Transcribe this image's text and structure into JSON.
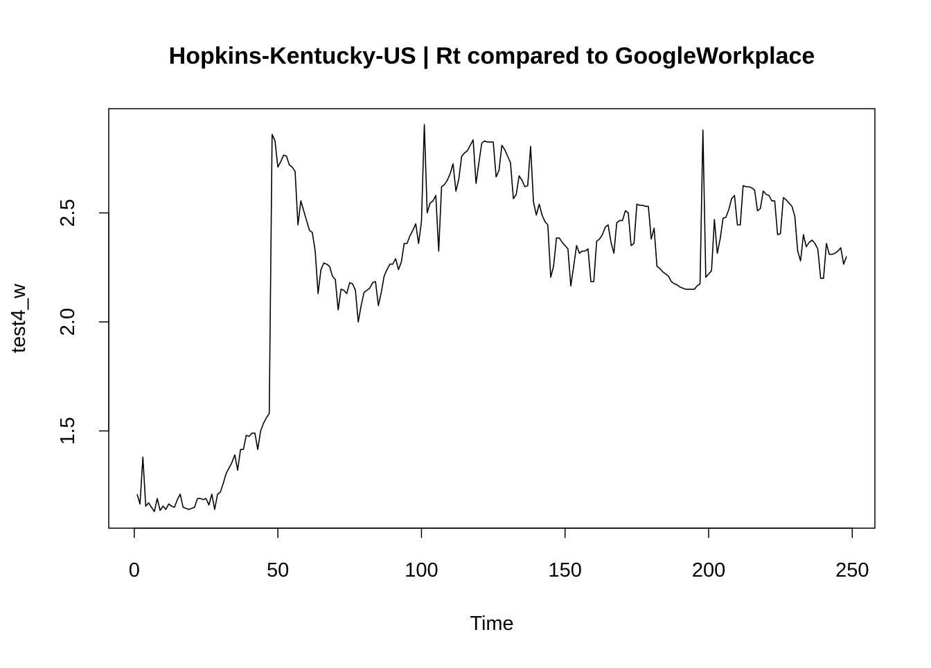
{
  "chart_data": {
    "type": "line",
    "title": "Hopkins-Kentucky-US | Rt compared to GoogleWorkplace",
    "x_label": "Time",
    "y_label": "test4_w",
    "x": [
      1,
      2,
      3,
      4,
      5,
      6,
      7,
      8,
      9,
      10,
      11,
      12,
      13,
      14,
      15,
      16,
      17,
      18,
      19,
      20,
      21,
      22,
      23,
      24,
      25,
      26,
      27,
      28,
      29,
      30,
      31,
      32,
      33,
      34,
      35,
      36,
      37,
      38,
      39,
      40,
      41,
      42,
      43,
      44,
      45,
      46,
      47,
      48,
      49,
      50,
      51,
      52,
      53,
      54,
      55,
      56,
      57,
      58,
      59,
      60,
      61,
      62,
      63,
      64,
      65,
      66,
      67,
      68,
      69,
      70,
      71,
      72,
      73,
      74,
      75,
      76,
      77,
      78,
      79,
      80,
      81,
      82,
      83,
      84,
      85,
      86,
      87,
      88,
      89,
      90,
      91,
      92,
      93,
      94,
      95,
      96,
      97,
      98,
      99,
      100,
      101,
      102,
      103,
      104,
      105,
      106,
      107,
      108,
      109,
      110,
      111,
      112,
      113,
      114,
      115,
      116,
      117,
      118,
      119,
      120,
      121,
      122,
      123,
      124,
      125,
      126,
      127,
      128,
      129,
      130,
      131,
      132,
      133,
      134,
      135,
      136,
      137,
      138,
      139,
      140,
      141,
      142,
      143,
      144,
      145,
      146,
      147,
      148,
      149,
      150,
      151,
      152,
      153,
      154,
      155,
      156,
      157,
      158,
      159,
      160,
      161,
      162,
      163,
      164,
      165,
      166,
      167,
      168,
      169,
      170,
      171,
      172,
      173,
      174,
      175,
      176,
      177,
      178,
      179,
      180,
      181,
      182,
      183,
      184,
      185,
      186,
      187,
      188,
      189,
      190,
      191,
      192,
      193,
      194,
      195,
      196,
      197,
      198,
      199,
      200,
      201,
      202,
      203,
      204,
      205,
      206,
      207,
      208,
      209,
      210,
      211,
      212,
      213,
      214,
      215,
      216,
      217,
      218,
      219,
      220,
      221,
      222,
      223,
      224,
      225,
      226,
      227,
      228,
      229,
      230,
      231,
      232,
      233,
      234,
      235,
      236,
      237,
      238,
      239,
      240,
      241,
      242,
      243,
      244,
      245,
      246,
      247,
      248
    ],
    "series": [
      {
        "name": "test4_w",
        "color": "#000000",
        "values": [
          1.21,
          1.165,
          1.38,
          1.155,
          1.17,
          1.15,
          1.13,
          1.19,
          1.135,
          1.155,
          1.14,
          1.165,
          1.155,
          1.15,
          1.185,
          1.21,
          1.15,
          1.145,
          1.14,
          1.145,
          1.15,
          1.19,
          1.19,
          1.185,
          1.19,
          1.16,
          1.21,
          1.14,
          1.21,
          1.22,
          1.26,
          1.305,
          1.33,
          1.355,
          1.39,
          1.32,
          1.415,
          1.415,
          1.48,
          1.475,
          1.49,
          1.49,
          1.415,
          1.5,
          1.535,
          1.56,
          1.58,
          2.86,
          2.83,
          2.71,
          2.735,
          2.765,
          2.76,
          2.72,
          2.71,
          2.69,
          2.445,
          2.555,
          2.51,
          2.465,
          2.42,
          2.41,
          2.325,
          2.13,
          2.24,
          2.27,
          2.265,
          2.255,
          2.21,
          2.195,
          2.055,
          2.15,
          2.145,
          2.13,
          2.18,
          2.175,
          2.145,
          2.0,
          2.075,
          2.135,
          2.145,
          2.155,
          2.18,
          2.185,
          2.075,
          2.135,
          2.21,
          2.24,
          2.265,
          2.265,
          2.29,
          2.24,
          2.275,
          2.36,
          2.36,
          2.395,
          2.42,
          2.45,
          2.36,
          2.46,
          2.905,
          2.5,
          2.545,
          2.555,
          2.58,
          2.325,
          2.62,
          2.63,
          2.65,
          2.68,
          2.725,
          2.6,
          2.655,
          2.76,
          2.775,
          2.785,
          2.81,
          2.835,
          2.635,
          2.73,
          2.82,
          2.83,
          2.825,
          2.825,
          2.825,
          2.665,
          2.695,
          2.81,
          2.79,
          2.76,
          2.73,
          2.565,
          2.585,
          2.67,
          2.65,
          2.62,
          2.625,
          2.805,
          2.55,
          2.49,
          2.54,
          2.49,
          2.46,
          2.445,
          2.205,
          2.255,
          2.385,
          2.385,
          2.365,
          2.35,
          2.335,
          2.165,
          2.255,
          2.35,
          2.315,
          2.325,
          2.325,
          2.335,
          2.185,
          2.185,
          2.37,
          2.38,
          2.4,
          2.435,
          2.445,
          2.365,
          2.315,
          2.455,
          2.465,
          2.465,
          2.51,
          2.5,
          2.35,
          2.36,
          2.54,
          2.535,
          2.535,
          2.53,
          2.53,
          2.38,
          2.43,
          2.255,
          2.245,
          2.23,
          2.22,
          2.21,
          2.185,
          2.175,
          2.17,
          2.16,
          2.155,
          2.15,
          2.15,
          2.15,
          2.15,
          2.165,
          2.175,
          2.88,
          2.205,
          2.22,
          2.235,
          2.47,
          2.315,
          2.38,
          2.475,
          2.48,
          2.515,
          2.565,
          2.58,
          2.445,
          2.445,
          2.625,
          2.62,
          2.62,
          2.615,
          2.605,
          2.51,
          2.52,
          2.6,
          2.585,
          2.58,
          2.555,
          2.555,
          2.4,
          2.405,
          2.57,
          2.56,
          2.545,
          2.53,
          2.485,
          2.325,
          2.28,
          2.4,
          2.345,
          2.365,
          2.375,
          2.36,
          2.335,
          2.2,
          2.2,
          2.36,
          2.31,
          2.31,
          2.315,
          2.325,
          2.34,
          2.265,
          2.3
        ]
      }
    ],
    "xlim": [
      -8.88,
      257.88
    ],
    "ylim": [
      1.054,
      2.978
    ],
    "xticks": [
      0,
      50,
      100,
      150,
      200,
      250
    ],
    "yticks": [
      1.5,
      {
        "value": 2,
        "label": "2.0"
      },
      2.5
    ]
  }
}
